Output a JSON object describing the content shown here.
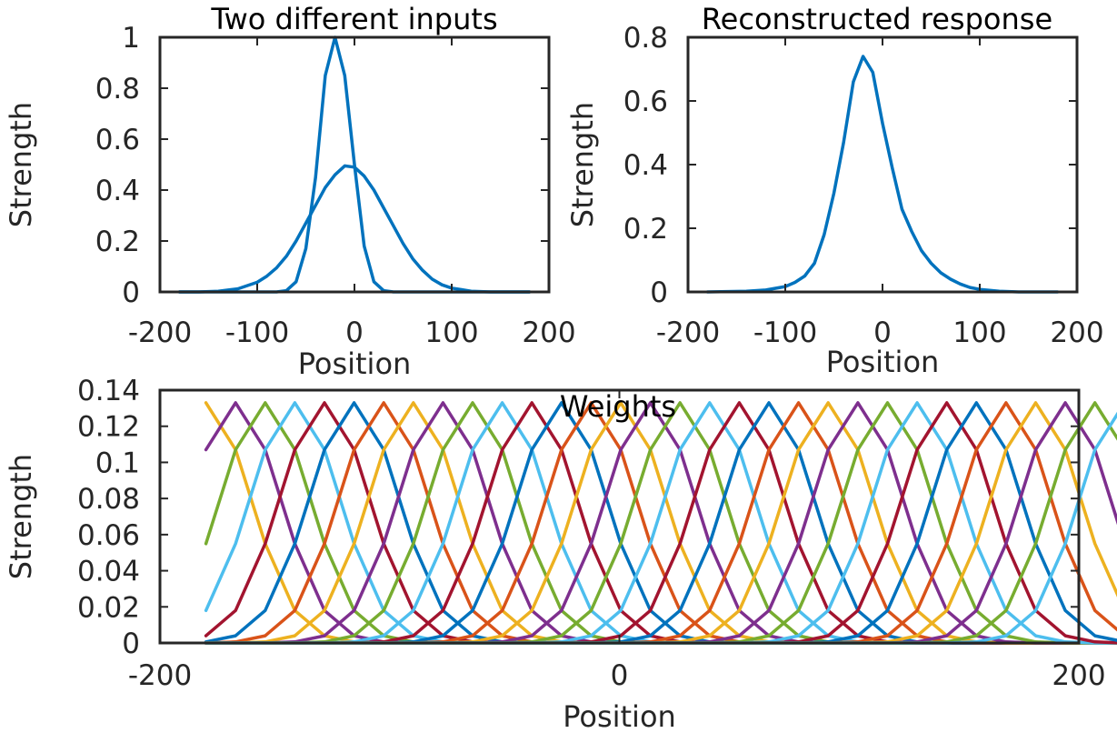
{
  "chart_data": [
    {
      "type": "line",
      "title": "Two different inputs",
      "xlabel": "Position",
      "ylabel": "Strength",
      "xlim": [
        -200,
        200
      ],
      "ylim": [
        0,
        1
      ],
      "xticks": [
        -200,
        -100,
        0,
        100,
        200
      ],
      "xtick_labels": [
        "-200",
        "-100",
        "0",
        "100",
        "200"
      ],
      "yticks": [
        0,
        0.2,
        0.4,
        0.6,
        0.8,
        1
      ],
      "ytick_labels": [
        "0",
        "0.2",
        "0.4",
        "0.6",
        "0.8",
        "1"
      ],
      "grid": false,
      "series": [
        {
          "color": "#0072BD",
          "x": [
            -180,
            -160,
            -140,
            -120,
            -100,
            -90,
            -80,
            -70,
            -60,
            -50,
            -40,
            -30,
            -20,
            -10,
            0,
            10,
            20,
            30,
            40,
            50,
            60,
            70,
            80,
            90,
            100,
            120,
            140,
            160,
            180
          ],
          "y": [
            0,
            0,
            0.003,
            0.012,
            0.038,
            0.062,
            0.095,
            0.14,
            0.2,
            0.27,
            0.34,
            0.41,
            0.46,
            0.495,
            0.49,
            0.455,
            0.4,
            0.33,
            0.26,
            0.19,
            0.13,
            0.085,
            0.05,
            0.028,
            0.015,
            0.003,
            0,
            0,
            0
          ]
        },
        {
          "color": "#0072BD",
          "x": [
            -180,
            -100,
            -80,
            -70,
            -60,
            -50,
            -40,
            -30,
            -20,
            -10,
            0,
            10,
            20,
            30,
            40,
            50,
            180
          ],
          "y": [
            0,
            0,
            0,
            0.005,
            0.04,
            0.17,
            0.45,
            0.85,
            1.0,
            0.85,
            0.5,
            0.18,
            0.04,
            0.005,
            0,
            0,
            0
          ]
        }
      ]
    },
    {
      "type": "line",
      "title": "Reconstructed response",
      "xlabel": "Position",
      "ylabel": "Strength",
      "xlim": [
        -200,
        200
      ],
      "ylim": [
        0,
        0.8
      ],
      "xticks": [
        -200,
        -100,
        0,
        100,
        200
      ],
      "xtick_labels": [
        "-200",
        "-100",
        "0",
        "100",
        "200"
      ],
      "yticks": [
        0,
        0.2,
        0.4,
        0.6,
        0.8
      ],
      "ytick_labels": [
        "0",
        "0.2",
        "0.4",
        "0.6",
        "0.8"
      ],
      "grid": false,
      "series": [
        {
          "color": "#0072BD",
          "x": [
            -180,
            -140,
            -120,
            -100,
            -90,
            -80,
            -70,
            -60,
            -50,
            -40,
            -30,
            -20,
            -10,
            0,
            10,
            20,
            30,
            40,
            50,
            60,
            70,
            80,
            90,
            100,
            120,
            140,
            180
          ],
          "y": [
            0,
            0.002,
            0.006,
            0.017,
            0.03,
            0.05,
            0.09,
            0.18,
            0.31,
            0.47,
            0.66,
            0.74,
            0.69,
            0.53,
            0.39,
            0.26,
            0.19,
            0.13,
            0.09,
            0.06,
            0.04,
            0.025,
            0.014,
            0.008,
            0.002,
            0,
            0
          ]
        }
      ]
    },
    {
      "type": "line",
      "title": "Weights",
      "xlabel": "Position",
      "ylabel": "Strength",
      "xlim": [
        -200,
        200
      ],
      "ylim": [
        0,
        0.14
      ],
      "xticks": [
        -200,
        0,
        200
      ],
      "xtick_labels": [
        "-200",
        "0",
        "200"
      ],
      "yticks": [
        0,
        0.02,
        0.04,
        0.06,
        0.08,
        0.1,
        0.12,
        0.14
      ],
      "ytick_labels": [
        "0",
        "0.02",
        "0.04",
        "0.06",
        "0.08",
        "0.1",
        "0.12",
        "0.14"
      ],
      "grid": false,
      "kernel": {
        "x_start": -180,
        "x_step": 12.9,
        "num_points": 32,
        "profile": [
          0.133,
          0.107,
          0.055,
          0.018,
          0.004,
          0.0006,
          0
        ]
      },
      "series": [
        {
          "color": "#EDB120",
          "center_index": 0
        },
        {
          "color": "#7E2F8E",
          "center_index": 1
        },
        {
          "color": "#77AC30",
          "center_index": 2
        },
        {
          "color": "#4DBEEE",
          "center_index": 3
        },
        {
          "color": "#A2142F",
          "center_index": 4
        },
        {
          "color": "#0072BD",
          "center_index": 5
        },
        {
          "color": "#D95319",
          "center_index": 6
        },
        {
          "color": "#EDB120",
          "center_index": 7
        },
        {
          "color": "#7E2F8E",
          "center_index": 8
        },
        {
          "color": "#77AC30",
          "center_index": 9
        },
        {
          "color": "#4DBEEE",
          "center_index": 10
        },
        {
          "color": "#A2142F",
          "center_index": 11
        },
        {
          "color": "#0072BD",
          "center_index": 12
        },
        {
          "color": "#D95319",
          "center_index": 13
        },
        {
          "color": "#EDB120",
          "center_index": 14
        },
        {
          "color": "#7E2F8E",
          "center_index": 15
        },
        {
          "color": "#77AC30",
          "center_index": 16
        },
        {
          "color": "#4DBEEE",
          "center_index": 17
        },
        {
          "color": "#A2142F",
          "center_index": 18
        },
        {
          "color": "#0072BD",
          "center_index": 19
        },
        {
          "color": "#D95319",
          "center_index": 20
        },
        {
          "color": "#EDB120",
          "center_index": 21
        },
        {
          "color": "#7E2F8E",
          "center_index": 22
        },
        {
          "color": "#77AC30",
          "center_index": 23
        },
        {
          "color": "#4DBEEE",
          "center_index": 24
        },
        {
          "color": "#A2142F",
          "center_index": 25
        },
        {
          "color": "#0072BD",
          "center_index": 26
        },
        {
          "color": "#D95319",
          "center_index": 27
        },
        {
          "color": "#EDB120",
          "center_index": 28
        },
        {
          "color": "#7E2F8E",
          "center_index": 29
        },
        {
          "color": "#77AC30",
          "center_index": 30
        },
        {
          "color": "#4DBEEE",
          "center_index": 31
        }
      ]
    }
  ]
}
